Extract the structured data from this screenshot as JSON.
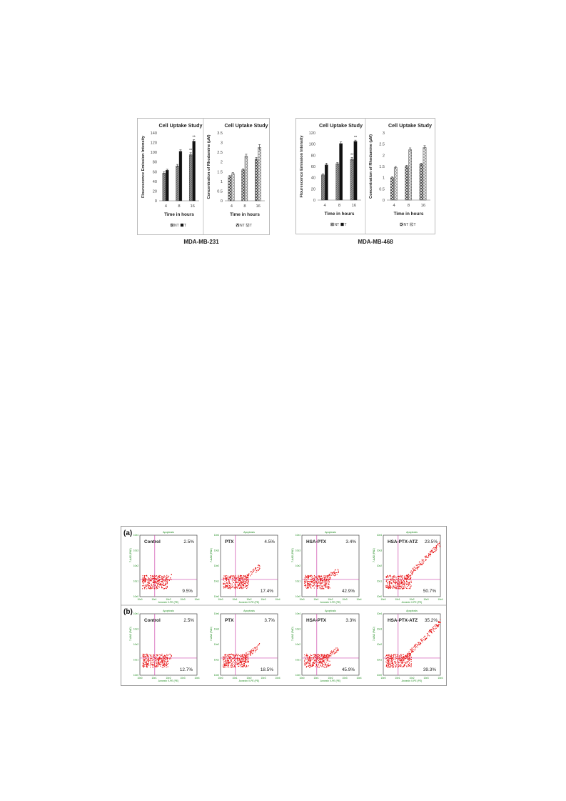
{
  "bar_panels": [
    {
      "cell_line": "MDA-MB-231",
      "charts": [
        {
          "type": "bar",
          "title": "Cell Uptake Study",
          "ylabel": "Flourescence Emission Intensity",
          "xlabel": "Time in hours",
          "categories": [
            "4",
            "8",
            "16"
          ],
          "ylim": [
            0,
            140
          ],
          "yticks": [
            "0",
            "20",
            "40",
            "60",
            "80",
            "100",
            "120",
            "140"
          ],
          "series": [
            {
              "name": "NT",
              "values": [
                57,
                72,
                95
              ],
              "errors": [
                3,
                3,
                4
              ],
              "fill": "grey-hatch"
            },
            {
              "name": "T",
              "values": [
                63,
                102,
                123
              ],
              "errors": [
                2,
                3,
                3
              ],
              "fill": "black"
            }
          ],
          "annotations": [
            {
              "text": "**",
              "category": 2,
              "series": 0
            },
            {
              "text": "**",
              "category": 2,
              "series": 1
            }
          ],
          "legend": [
            "NT",
            "T"
          ]
        },
        {
          "type": "bar",
          "title": "Cell Uptake Study",
          "ylabel": "Concentration of Rhodamine (µM)",
          "xlabel": "Time in hours",
          "categories": [
            "4",
            "8",
            "16"
          ],
          "ylim": [
            0,
            3.5
          ],
          "yticks": [
            "0",
            "0.5",
            "1",
            "1.5",
            "2",
            "2.5",
            "3",
            "3.5"
          ],
          "series": [
            {
              "name": "NT",
              "values": [
                1.25,
                1.6,
                2.15
              ],
              "errors": [
                0.05,
                0.05,
                0.08
              ],
              "fill": "check"
            },
            {
              "name": "T",
              "values": [
                1.4,
                2.3,
                2.75
              ],
              "errors": [
                0.05,
                0.1,
                0.15
              ],
              "fill": "light-check"
            }
          ],
          "annotations": [],
          "legend": [
            "NT",
            "T"
          ]
        }
      ]
    },
    {
      "cell_line": "MDA-MB-468",
      "charts": [
        {
          "type": "bar",
          "title": "Cell Uptake Study",
          "ylabel": "Flourescence Emission Intensity",
          "xlabel": "Time in hours",
          "categories": [
            "4",
            "8",
            "16"
          ],
          "ylim": [
            0,
            120
          ],
          "yticks": [
            "0",
            "20",
            "40",
            "60",
            "80",
            "100",
            "120"
          ],
          "series": [
            {
              "name": "NT",
              "values": [
                45,
                65,
                73
              ],
              "errors": [
                2,
                2,
                3
              ],
              "fill": "grey-hatch"
            },
            {
              "name": "T",
              "values": [
                63,
                101,
                105
              ],
              "errors": [
                3,
                3,
                2
              ],
              "fill": "black"
            }
          ],
          "annotations": [
            {
              "text": "**",
              "category": 2,
              "series": 0
            },
            {
              "text": "**",
              "category": 2,
              "series": 1
            }
          ],
          "legend": [
            "NT",
            "T"
          ]
        },
        {
          "type": "bar",
          "title": "Cell Uptake Study",
          "ylabel": "Concentration of Rhodamine (µM)",
          "xlabel": "Time in hours",
          "categories": [
            "4",
            "8",
            "16"
          ],
          "ylim": [
            0,
            3
          ],
          "yticks": [
            "0",
            "0.5",
            "1",
            "1.5",
            "2",
            "2.5",
            "3"
          ],
          "series": [
            {
              "name": "NT",
              "values": [
                1.0,
                1.5,
                1.6
              ],
              "errors": [
                0.04,
                0.05,
                0.05
              ],
              "fill": "check"
            },
            {
              "name": "T",
              "values": [
                1.45,
                2.25,
                2.35
              ],
              "errors": [
                0.05,
                0.08,
                0.08
              ],
              "fill": "light-check"
            }
          ],
          "annotations": [],
          "legend": [
            "NT",
            "T"
          ]
        }
      ]
    }
  ],
  "flow": {
    "rows": [
      {
        "label": "(a)",
        "panels": [
          {
            "name": "Control",
            "upper_right": "2.5%",
            "lower_right": "9.5%",
            "upper_extent": 0.0
          },
          {
            "name": "PTX",
            "upper_right": "4.5%",
            "lower_right": "17.4%",
            "upper_extent": 0.3
          },
          {
            "name": "HSA-PTX",
            "upper_right": "3.4%",
            "lower_right": "42.9%",
            "upper_extent": 0.2
          },
          {
            "name": "HSA-PTX-ATZ",
            "upper_right": "23.5%",
            "lower_right": "50.7%",
            "upper_extent": 1.0
          }
        ]
      },
      {
        "label": "(b)",
        "panels": [
          {
            "name": "Control",
            "upper_right": "2.5%",
            "lower_right": "12.7%",
            "upper_extent": 0.0
          },
          {
            "name": "PTX",
            "upper_right": "3.7%",
            "lower_right": "18.5%",
            "upper_extent": 0.3
          },
          {
            "name": "HSA-PTX",
            "upper_right": "3.3%",
            "lower_right": "45.9%",
            "upper_extent": 0.2
          },
          {
            "name": "HSA-PTX-ATZ",
            "upper_right": "35.2%",
            "lower_right": "39.3%",
            "upper_extent": 1.0
          }
        ]
      }
    ],
    "plot_title": "Apoptosis",
    "xlabel": "Annexin V-PE (PE)",
    "ylabel": "7-AAD (PAD)",
    "xticks": [
      "10e0",
      "10e1",
      "10e2",
      "10e3",
      "10e4"
    ],
    "yticks": [
      "10e0",
      "10e1",
      "10e2",
      "10e3",
      "10e4"
    ],
    "colors": {
      "dots": "#e8191a",
      "gate": "#cc44aa",
      "axis_text": "#1e8a1e"
    }
  }
}
